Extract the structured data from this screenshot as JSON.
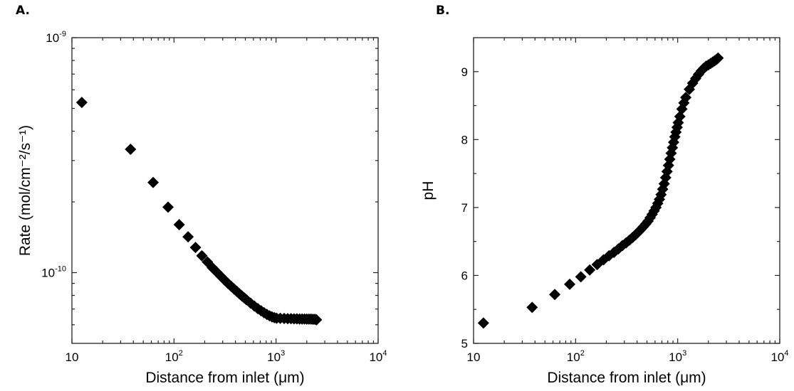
{
  "chart_data": [
    {
      "panel_label": "A.",
      "type": "scatter",
      "xlabel": "Distance from inlet (μm)",
      "ylabel": "Rate (mol/cm⁻²/s⁻¹)",
      "xscale": "log",
      "yscale": "log",
      "xlim": [
        10,
        10000
      ],
      "ylim": [
        5e-11,
        1e-09
      ],
      "x_ticks": [
        {
          "value": 10,
          "base": "10",
          "exp": ""
        },
        {
          "value": 100,
          "base": "10",
          "exp": "2"
        },
        {
          "value": 1000,
          "base": "10",
          "exp": "3"
        },
        {
          "value": 10000,
          "base": "10",
          "exp": "4"
        }
      ],
      "y_ticks": [
        {
          "value": 1e-09,
          "base": "10",
          "exp": "-9"
        },
        {
          "value": 1e-10,
          "base": "10",
          "exp": "-10"
        }
      ],
      "grid": false,
      "marker": "diamond",
      "color": "#000000",
      "series": [
        {
          "x": [
            12.5,
            37.5,
            62.5,
            87.5,
            112.5,
            137.5,
            162.5,
            187.5,
            212.5,
            237.5,
            262.5,
            287.5,
            312.5,
            337.5,
            362.5,
            387.5,
            412.5,
            437.5,
            462.5,
            487.5,
            512.5,
            562.5,
            612.5,
            662.5,
            712.5,
            762.5,
            812.5,
            862.5,
            912.5,
            962.5,
            1012.5,
            1100,
            1200,
            1300,
            1400,
            1500,
            1600,
            1700,
            1800,
            1900,
            2000,
            2100,
            2200,
            2300,
            2400,
            2487.5
          ],
          "y": [
            5.3e-10,
            3.35e-10,
            2.42e-10,
            1.9e-10,
            1.6e-10,
            1.42e-10,
            1.28e-10,
            1.18e-10,
            1.11e-10,
            1.05e-10,
            1.005e-10,
            9.65e-11,
            9.3e-11,
            9e-11,
            8.75e-11,
            8.52e-11,
            8.32e-11,
            8.13e-11,
            7.96e-11,
            7.81e-11,
            7.67e-11,
            7.42e-11,
            7.21e-11,
            7.03e-11,
            6.88e-11,
            6.75e-11,
            6.64e-11,
            6.55e-11,
            6.48e-11,
            6.43e-11,
            6.4e-11,
            6.39e-11,
            6.38e-11,
            6.37e-11,
            6.37e-11,
            6.36e-11,
            6.36e-11,
            6.35e-11,
            6.35e-11,
            6.35e-11,
            6.34e-11,
            6.34e-11,
            6.34e-11,
            6.33e-11,
            6.33e-11,
            6.3e-11
          ]
        }
      ]
    },
    {
      "panel_label": "B.",
      "type": "scatter",
      "xlabel": "Distance from inlet (μm)",
      "ylabel": "pH",
      "xscale": "log",
      "yscale": "linear",
      "xlim": [
        10,
        10000
      ],
      "ylim": [
        5,
        9.5
      ],
      "x_ticks": [
        {
          "value": 10,
          "base": "10",
          "exp": ""
        },
        {
          "value": 100,
          "base": "10",
          "exp": "2"
        },
        {
          "value": 1000,
          "base": "10",
          "exp": "3"
        },
        {
          "value": 10000,
          "base": "10",
          "exp": "4"
        }
      ],
      "y_ticks": [
        {
          "value": 5,
          "base": "5",
          "exp": ""
        },
        {
          "value": 6,
          "base": "6",
          "exp": ""
        },
        {
          "value": 7,
          "base": "7",
          "exp": ""
        },
        {
          "value": 8,
          "base": "8",
          "exp": ""
        },
        {
          "value": 9,
          "base": "9",
          "exp": ""
        }
      ],
      "grid": false,
      "marker": "diamond",
      "color": "#000000",
      "series": [
        {
          "x": [
            12.5,
            37.5,
            62.5,
            87.5,
            112.5,
            137.5,
            162.5,
            187.5,
            212.5,
            237.5,
            262.5,
            287.5,
            312.5,
            337.5,
            362.5,
            387.5,
            412.5,
            437.5,
            462.5,
            487.5,
            512.5,
            537.5,
            562.5,
            587.5,
            612.5,
            637.5,
            662.5,
            687.5,
            712.5,
            737.5,
            762.5,
            787.5,
            812.5,
            837.5,
            862.5,
            887.5,
            912.5,
            937.5,
            962.5,
            987.5,
            1012.5,
            1050,
            1100,
            1150,
            1200,
            1300,
            1400,
            1500,
            1600,
            1700,
            1800,
            1900,
            2000,
            2100,
            2200,
            2300,
            2400,
            2487.5
          ],
          "y": [
            5.3,
            5.53,
            5.72,
            5.87,
            5.98,
            6.08,
            6.16,
            6.23,
            6.29,
            6.34,
            6.39,
            6.44,
            6.48,
            6.52,
            6.56,
            6.6,
            6.64,
            6.68,
            6.72,
            6.76,
            6.8,
            6.85,
            6.9,
            6.95,
            7.0,
            7.06,
            7.12,
            7.19,
            7.27,
            7.35,
            7.44,
            7.53,
            7.62,
            7.71,
            7.8,
            7.88,
            7.96,
            8.04,
            8.11,
            8.18,
            8.25,
            8.34,
            8.45,
            8.54,
            8.62,
            8.74,
            8.83,
            8.9,
            8.96,
            9.01,
            9.05,
            9.08,
            9.1,
            9.12,
            9.14,
            9.16,
            9.18,
            9.2
          ]
        }
      ]
    }
  ]
}
